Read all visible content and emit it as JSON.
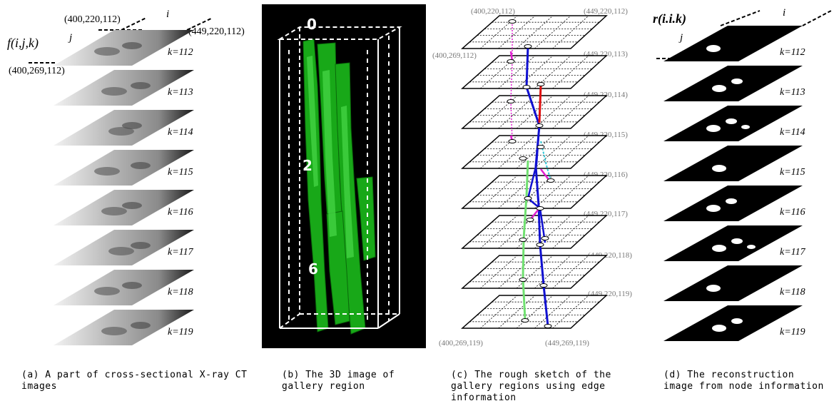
{
  "panel_a": {
    "function_label": "f(i,j,k)",
    "axis_i": "i",
    "axis_j": "j",
    "coord_top": "(400,220,112)",
    "coord_right": "(449,220,112)",
    "coord_left": "(400,269,112)",
    "slices": [
      "k=112",
      "k=113",
      "k=114",
      "k=115",
      "k=116",
      "k=117",
      "k=118",
      "k=119"
    ],
    "caption": "(a) A part of cross-sectional X-ray CT images"
  },
  "panel_b": {
    "labels": [
      "0",
      "2",
      "6"
    ],
    "caption": "(b) The 3D image of gallery region"
  },
  "panel_c": {
    "coord_top": "(400,220,112)",
    "coord_left_top": "(400,269,112)",
    "right_coords": [
      "(449,220,112)",
      "(449,220,113)",
      "(449,220,114)",
      "(449,220,115)",
      "(449,220,116)",
      "(449,220,117)",
      "(449,220,118)",
      "(449,220,119)"
    ],
    "coord_bottom_left": "(400,269,119)",
    "coord_bottom_right": "(449,269,119)",
    "caption": "(c) The rough sketch of the gallery regions using edge information"
  },
  "panel_d": {
    "function_label": "r(i.i.k)",
    "axis_i": "i",
    "axis_j": "j",
    "slices": [
      "k=112",
      "k=113",
      "k=114",
      "k=115",
      "k=116",
      "k=117",
      "k=118",
      "k=119"
    ],
    "caption": "(d) The reconstruction image from node information"
  },
  "colors": {
    "green": "#22b822",
    "blue": "#1010d0",
    "magenta": "#e020d0",
    "red": "#e01010",
    "cyan": "#30c8d8",
    "lightgreen": "#70e070"
  }
}
